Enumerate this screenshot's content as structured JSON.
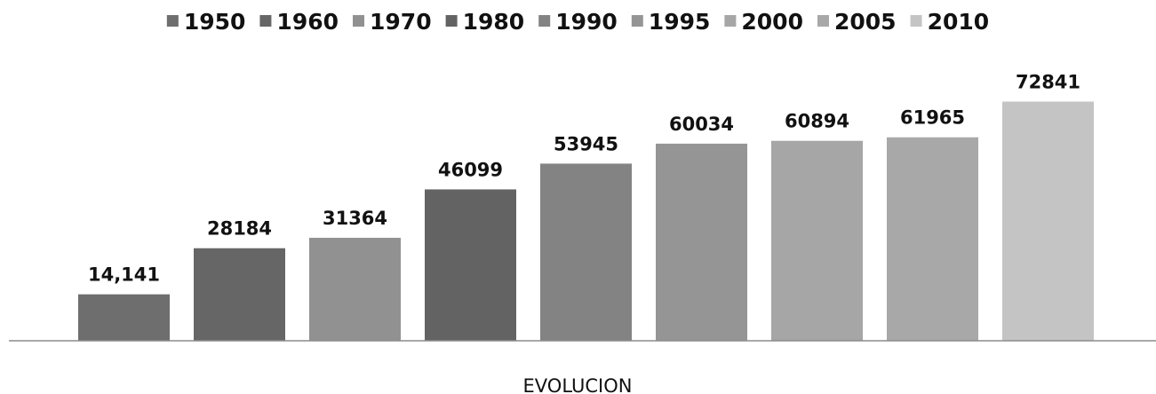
{
  "chart_data": {
    "type": "bar",
    "title": "",
    "xlabel": "EVOLUCION",
    "ylabel": "",
    "ylim": [
      0,
      80000
    ],
    "grid": false,
    "legend_position": "top",
    "categories": [
      "EVOLUCION"
    ],
    "series": [
      {
        "name": "1950",
        "value": 14141,
        "label": "14,141",
        "color": "#6e6e6e"
      },
      {
        "name": "1960",
        "value": 28184,
        "label": "28184",
        "color": "#666666"
      },
      {
        "name": "1970",
        "value": 31364,
        "label": "31364",
        "color": "#919191"
      },
      {
        "name": "1980",
        "value": 46099,
        "label": "46099",
        "color": "#636363"
      },
      {
        "name": "1990",
        "value": 53945,
        "label": "53945",
        "color": "#838383"
      },
      {
        "name": "1995",
        "value": 60034,
        "label": "60034",
        "color": "#959595"
      },
      {
        "name": "2000",
        "value": 60894,
        "label": "60894",
        "color": "#a6a6a6"
      },
      {
        "name": "2005",
        "value": 61965,
        "label": "61965",
        "color": "#a8a8a8"
      },
      {
        "name": "2010",
        "value": 72841,
        "label": "72841",
        "color": "#c4c4c4"
      }
    ]
  }
}
